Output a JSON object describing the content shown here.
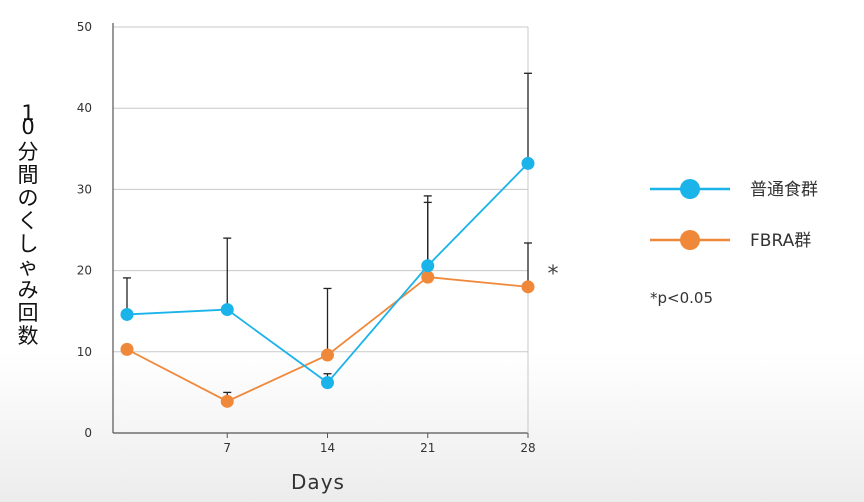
{
  "chart_data": {
    "type": "line",
    "xlabel": "Days",
    "ylabel": "10分間のくしゃみ回数",
    "x": [
      0,
      7,
      14,
      21,
      28
    ],
    "x_tick_labels": [
      "7",
      "14",
      "21",
      "28"
    ],
    "ylim": [
      0,
      50
    ],
    "y_ticks": [
      0,
      10,
      20,
      30,
      40,
      50
    ],
    "grid": true,
    "legend_position": "right",
    "series": [
      {
        "name": "普通食群",
        "color": "#1ab3ea",
        "values": [
          14.6,
          15.2,
          6.2,
          20.6,
          33.2
        ],
        "error_upper": [
          19.1,
          24.0,
          7.3,
          28.4,
          44.3
        ]
      },
      {
        "name": "FBRA群",
        "color": "#f0883a",
        "values": [
          10.3,
          3.9,
          9.6,
          19.2,
          18.0
        ],
        "error_upper": [
          10.3,
          5.0,
          17.8,
          29.2,
          23.4
        ]
      }
    ],
    "significance_marker": "*",
    "annotation": "*p<0.05"
  }
}
